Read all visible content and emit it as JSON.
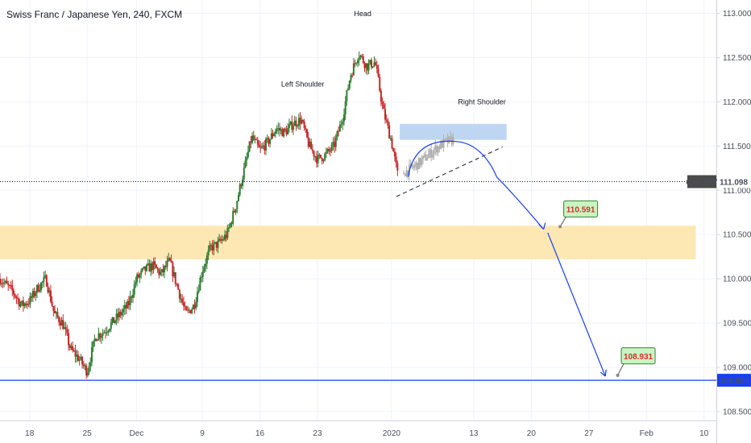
{
  "chart_data": {
    "type": "candlestick",
    "title": "Swiss Franc / Japanese Yen, 240, FXCM",
    "symbol": "CHFJPY",
    "last_price": "111.098",
    "ylim": [
      108.4,
      113.15
    ],
    "y_ticks": [
      "113.000",
      "112.500",
      "112.000",
      "111.500",
      "111.000",
      "110.500",
      "110.000",
      "109.500",
      "109.000",
      "108.500"
    ],
    "x_ticks": [
      {
        "label": "18",
        "day": 0
      },
      {
        "label": "25",
        "day": 7
      },
      {
        "label": "Dec",
        "day": 13
      },
      {
        "label": "9",
        "day": 21
      },
      {
        "label": "16",
        "day": 28
      },
      {
        "label": "23",
        "day": 35
      },
      {
        "label": "2020",
        "day": 44
      },
      {
        "label": "13",
        "day": 54
      },
      {
        "label": "20",
        "day": 61
      },
      {
        "label": "27",
        "day": 68
      },
      {
        "label": "Feb",
        "day": 75
      },
      {
        "label": "10",
        "day": 82
      }
    ],
    "x_range_days": [
      -3.6,
      83.5
    ],
    "colors": {
      "up": "#2e7d32",
      "down": "#c62828",
      "projected": "#b0b0b0",
      "blue": "#1a3ff2",
      "zone": "#fde8b4",
      "zone_blue": "#bfd6f2"
    },
    "price_path": [
      [
        -3.6,
        110.0
      ],
      [
        -2,
        109.85
      ],
      [
        -1,
        109.7
      ],
      [
        0,
        109.75
      ],
      [
        1,
        109.9
      ],
      [
        2,
        110.0
      ],
      [
        3,
        109.6
      ],
      [
        4,
        109.5
      ],
      [
        5,
        109.2
      ],
      [
        6,
        109.1
      ],
      [
        7,
        108.95
      ],
      [
        8,
        109.35
      ],
      [
        9,
        109.4
      ],
      [
        10,
        109.5
      ],
      [
        11,
        109.6
      ],
      [
        12,
        109.7
      ],
      [
        13,
        110.0
      ],
      [
        14,
        110.1
      ],
      [
        15,
        110.15
      ],
      [
        16,
        110.05
      ],
      [
        17,
        110.2
      ],
      [
        18,
        109.9
      ],
      [
        19,
        109.6
      ],
      [
        20,
        109.7
      ],
      [
        21,
        110.1
      ],
      [
        22,
        110.35
      ],
      [
        23,
        110.4
      ],
      [
        24,
        110.5
      ],
      [
        25,
        110.8
      ],
      [
        26,
        111.2
      ],
      [
        27,
        111.6
      ],
      [
        28,
        111.45
      ],
      [
        29,
        111.55
      ],
      [
        30,
        111.7
      ],
      [
        31,
        111.65
      ],
      [
        32,
        111.75
      ],
      [
        33,
        111.8
      ],
      [
        34,
        111.5
      ],
      [
        35,
        111.35
      ],
      [
        36,
        111.4
      ],
      [
        37,
        111.5
      ],
      [
        38,
        111.8
      ],
      [
        39,
        112.3
      ],
      [
        40,
        112.55
      ],
      [
        41,
        112.4
      ],
      [
        42,
        112.45
      ],
      [
        43,
        111.9
      ],
      [
        44,
        111.55
      ],
      [
        44.8,
        111.15
      ]
    ],
    "projected_path": [
      [
        45.5,
        111.2
      ],
      [
        46.5,
        111.25
      ],
      [
        47.5,
        111.32
      ],
      [
        48.5,
        111.4
      ],
      [
        49.5,
        111.48
      ],
      [
        50.5,
        111.54
      ],
      [
        51.5,
        111.57
      ]
    ],
    "zones": [
      {
        "name": "support",
        "from_day": -3.6,
        "to_day": 81,
        "low": 110.22,
        "high": 110.6,
        "color": "#fde8b4"
      },
      {
        "name": "resistance",
        "from_day": 45,
        "to_day": 58,
        "low": 111.57,
        "high": 111.75,
        "color": "#bfd6f2"
      }
    ],
    "neckline": {
      "from": [
        44.6,
        110.93
      ],
      "to": [
        57.5,
        111.49
      ]
    },
    "arc": {
      "from": [
        46,
        111.15
      ],
      "peak": [
        52,
        111.55
      ],
      "to": [
        56.8,
        111.15
      ]
    },
    "curve_to_target1": {
      "from": [
        56.8,
        111.15
      ],
      "to": [
        62.5,
        110.56
      ]
    },
    "line_to_target2": {
      "from": [
        63,
        110.52
      ],
      "to": [
        70,
        108.9
      ]
    },
    "support_line": 108.854,
    "current_line": 111.098,
    "badges": [
      {
        "label": "110.591",
        "anchor": [
          64.5,
          110.59
        ],
        "box": [
          67,
          110.79
        ]
      },
      {
        "label": "108.931",
        "anchor": [
          71.5,
          108.91
        ],
        "box": [
          74,
          109.13
        ]
      }
    ],
    "price_tags": [
      {
        "label": "CHFJPY",
        "value": "111.098",
        "kind": "symbol"
      },
      {
        "label": "108.854",
        "kind": "level"
      }
    ],
    "annotations": [
      {
        "text": "Head",
        "day": 40.5,
        "price": 112.97
      },
      {
        "text": "Left Shoulder",
        "day": 33.2,
        "price": 112.17
      },
      {
        "text": "Right Shoulder",
        "day": 55,
        "price": 111.97
      }
    ]
  }
}
